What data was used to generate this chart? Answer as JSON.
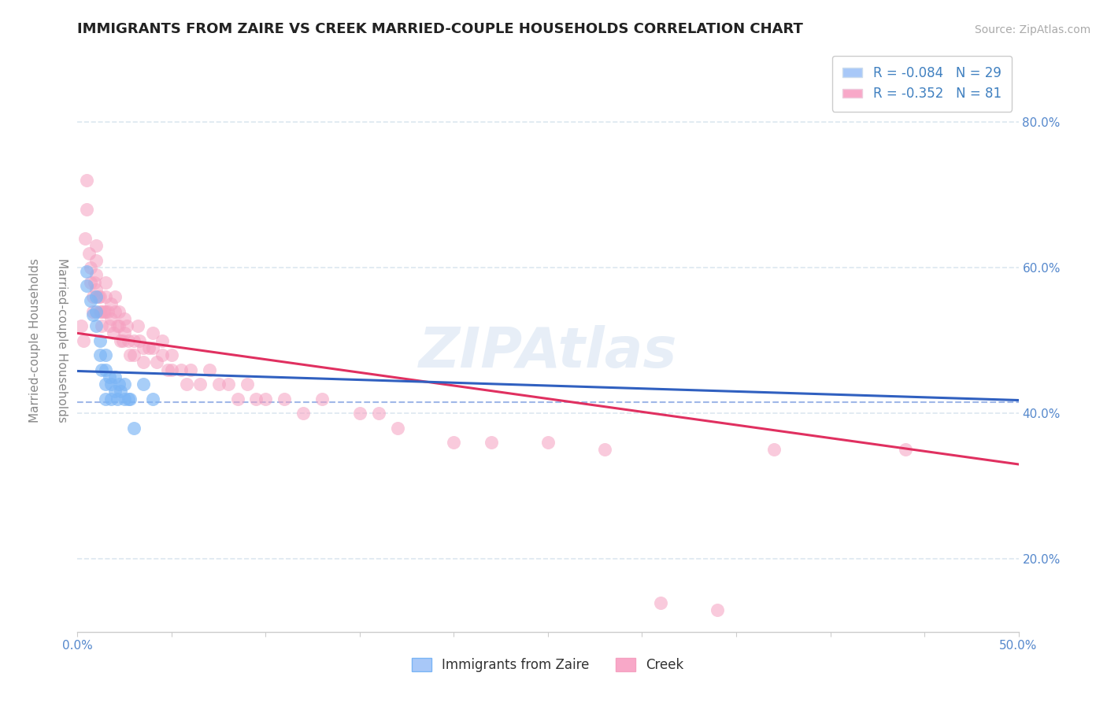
{
  "title": "IMMIGRANTS FROM ZAIRE VS CREEK MARRIED-COUPLE HOUSEHOLDS CORRELATION CHART",
  "source_text": "Source: ZipAtlas.com",
  "xlabel": "",
  "ylabel": "Married-couple Households",
  "xlim": [
    0.0,
    0.5
  ],
  "ylim": [
    0.1,
    0.9
  ],
  "xticks": [
    0.0,
    0.05,
    0.1,
    0.15,
    0.2,
    0.25,
    0.3,
    0.35,
    0.4,
    0.45,
    0.5
  ],
  "xticklabels_visible": [
    "0.0%",
    "",
    "",
    "",
    "",
    "",
    "",
    "",
    "",
    "",
    "50.0%"
  ],
  "yticks": [
    0.2,
    0.4,
    0.6,
    0.8
  ],
  "yticklabels": [
    "20.0%",
    "40.0%",
    "60.0%",
    "80.0%"
  ],
  "blue_scatter_x": [
    0.005,
    0.005,
    0.007,
    0.008,
    0.01,
    0.01,
    0.01,
    0.012,
    0.012,
    0.013,
    0.015,
    0.015,
    0.015,
    0.015,
    0.017,
    0.018,
    0.018,
    0.02,
    0.02,
    0.021,
    0.022,
    0.023,
    0.025,
    0.025,
    0.027,
    0.028,
    0.03,
    0.035,
    0.04
  ],
  "blue_scatter_y": [
    0.595,
    0.575,
    0.555,
    0.535,
    0.56,
    0.54,
    0.52,
    0.5,
    0.48,
    0.46,
    0.48,
    0.46,
    0.44,
    0.42,
    0.45,
    0.44,
    0.42,
    0.45,
    0.43,
    0.42,
    0.44,
    0.43,
    0.44,
    0.42,
    0.42,
    0.42,
    0.38,
    0.44,
    0.42
  ],
  "pink_scatter_x": [
    0.002,
    0.003,
    0.004,
    0.005,
    0.005,
    0.006,
    0.007,
    0.007,
    0.008,
    0.008,
    0.009,
    0.01,
    0.01,
    0.01,
    0.01,
    0.011,
    0.012,
    0.012,
    0.013,
    0.013,
    0.014,
    0.015,
    0.015,
    0.015,
    0.016,
    0.017,
    0.018,
    0.018,
    0.019,
    0.02,
    0.02,
    0.021,
    0.022,
    0.022,
    0.023,
    0.024,
    0.025,
    0.025,
    0.026,
    0.027,
    0.028,
    0.03,
    0.03,
    0.032,
    0.033,
    0.035,
    0.035,
    0.038,
    0.04,
    0.04,
    0.042,
    0.045,
    0.045,
    0.048,
    0.05,
    0.05,
    0.055,
    0.058,
    0.06,
    0.065,
    0.07,
    0.075,
    0.08,
    0.085,
    0.09,
    0.095,
    0.1,
    0.11,
    0.12,
    0.13,
    0.15,
    0.16,
    0.17,
    0.2,
    0.22,
    0.25,
    0.28,
    0.31,
    0.34,
    0.37,
    0.44
  ],
  "pink_scatter_y": [
    0.52,
    0.5,
    0.64,
    0.68,
    0.72,
    0.62,
    0.6,
    0.58,
    0.56,
    0.54,
    0.58,
    0.63,
    0.61,
    0.59,
    0.57,
    0.56,
    0.54,
    0.56,
    0.54,
    0.52,
    0.54,
    0.58,
    0.56,
    0.54,
    0.54,
    0.52,
    0.55,
    0.53,
    0.51,
    0.56,
    0.54,
    0.52,
    0.54,
    0.52,
    0.5,
    0.5,
    0.53,
    0.51,
    0.52,
    0.5,
    0.48,
    0.5,
    0.48,
    0.52,
    0.5,
    0.49,
    0.47,
    0.49,
    0.51,
    0.49,
    0.47,
    0.5,
    0.48,
    0.46,
    0.48,
    0.46,
    0.46,
    0.44,
    0.46,
    0.44,
    0.46,
    0.44,
    0.44,
    0.42,
    0.44,
    0.42,
    0.42,
    0.42,
    0.4,
    0.42,
    0.4,
    0.4,
    0.38,
    0.36,
    0.36,
    0.36,
    0.35,
    0.14,
    0.13,
    0.35,
    0.35
  ],
  "blue_line_x": [
    0.0,
    0.5
  ],
  "blue_line_y": [
    0.458,
    0.418
  ],
  "pink_line_x": [
    0.0,
    0.5
  ],
  "pink_line_y": [
    0.51,
    0.33
  ],
  "dashed_line_x": [
    0.0,
    0.5
  ],
  "dashed_line_y": [
    0.415,
    0.415
  ],
  "blue_scatter_color": "#7ab4f5",
  "pink_scatter_color": "#f5a0c0",
  "blue_line_color": "#3060c0",
  "pink_line_color": "#e03060",
  "dashed_line_color": "#a0b8e8",
  "watermark_text": "ZIPAtlas",
  "background_color": "#ffffff",
  "grid_color": "#dde8f0",
  "title_fontsize": 13,
  "axis_label_fontsize": 11,
  "tick_fontsize": 11,
  "source_fontsize": 10
}
